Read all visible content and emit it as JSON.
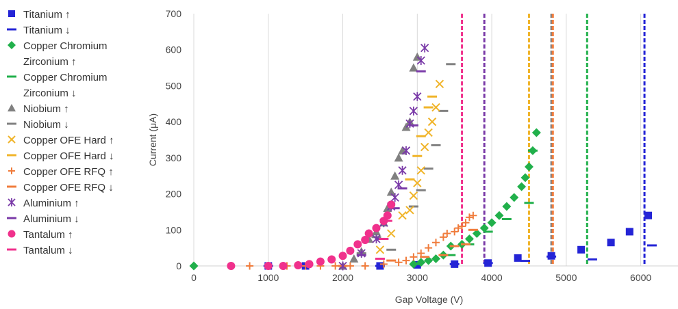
{
  "chart_data": {
    "type": "scatter",
    "title": "",
    "xlabel": "Gap Voltage (V)",
    "ylabel": "Current (μA)",
    "xlim": [
      0,
      6500
    ],
    "ylim": [
      0,
      700
    ],
    "xticks": [
      0,
      1000,
      2000,
      3000,
      4000,
      5000,
      6000
    ],
    "yticks": [
      0,
      100,
      200,
      300,
      400,
      500,
      600,
      700
    ],
    "grid": "vertical",
    "legend_position": "left",
    "series": [
      {
        "name": "Titanium ↑",
        "marker": "square",
        "color": "#2424d6",
        "x": [
          1000,
          1500,
          2500,
          3000,
          3500,
          3950,
          4350,
          4800,
          5200,
          5600,
          5850,
          6100
        ],
        "y": [
          0,
          0,
          0,
          3,
          5,
          8,
          22,
          28,
          45,
          65,
          95,
          140
        ]
      },
      {
        "name": "Titanium ↓",
        "marker": "dash",
        "color": "#2424d6",
        "x": [
          1000,
          1500,
          2500,
          3000,
          3500,
          3950,
          4450,
          4800,
          5350,
          6150
        ],
        "y": [
          0,
          0,
          0,
          3,
          5,
          8,
          14,
          26,
          18,
          57
        ]
      },
      {
        "name": "Copper Chromium Zirconium ↑",
        "marker": "diamond",
        "color": "#21b04b",
        "x": [
          0,
          2950,
          3050,
          3150,
          3250,
          3350,
          3450,
          3600,
          3700,
          3800,
          3900,
          4000,
          4100,
          4200,
          4300,
          4400,
          4450,
          4500,
          4550,
          4600
        ],
        "y": [
          0,
          5,
          10,
          15,
          20,
          30,
          55,
          60,
          75,
          90,
          105,
          120,
          140,
          165,
          190,
          220,
          245,
          275,
          320,
          370
        ]
      },
      {
        "name": "Copper Chromium Zirconium ↓",
        "marker": "dash",
        "color": "#21b04b",
        "x": [
          3000,
          3450,
          3700,
          3950,
          4200,
          4500,
          4550
        ],
        "y": [
          5,
          30,
          60,
          95,
          130,
          175,
          320
        ]
      },
      {
        "name": "Niobium ↑",
        "marker": "triangle",
        "color": "#808080",
        "x": [
          2000,
          2150,
          2250,
          2350,
          2450,
          2550,
          2600,
          2650,
          2700,
          2750,
          2800,
          2850,
          2900,
          2950,
          3000
        ],
        "y": [
          0,
          20,
          40,
          75,
          95,
          120,
          160,
          205,
          250,
          300,
          320,
          385,
          400,
          550,
          580
        ]
      },
      {
        "name": "Niobium ↓",
        "marker": "dash",
        "color": "#808080",
        "x": [
          2250,
          2450,
          2650,
          2950,
          3050,
          3150,
          3250,
          3350,
          3450
        ],
        "y": [
          35,
          80,
          45,
          165,
          210,
          270,
          335,
          430,
          560
        ]
      },
      {
        "name": "Copper OFE Hard ↑",
        "marker": "x",
        "color": "#f0b429",
        "x": [
          2500,
          2650,
          2800,
          2900,
          2950,
          3000,
          3050,
          3100,
          3150,
          3200,
          3250,
          3300
        ],
        "y": [
          45,
          90,
          140,
          155,
          195,
          230,
          265,
          330,
          370,
          400,
          440,
          505
        ]
      },
      {
        "name": "Copper OFE Hard ↓",
        "marker": "dash",
        "color": "#f0b429",
        "x": [
          2900,
          3000,
          3050,
          3150,
          3200
        ],
        "y": [
          240,
          305,
          360,
          440,
          470
        ]
      },
      {
        "name": "Copper OFE RFQ ↑",
        "marker": "plus",
        "color": "#f07c3c",
        "x": [
          750,
          1000,
          1250,
          1500,
          1700,
          1900,
          2100,
          2300,
          2550,
          2750,
          2850,
          2950,
          3050,
          3150,
          3250,
          3350,
          3400,
          3500,
          3550,
          3600,
          3650,
          3700,
          3750
        ],
        "y": [
          0,
          0,
          0,
          0,
          0,
          0,
          0,
          0,
          5,
          10,
          15,
          25,
          35,
          50,
          65,
          80,
          90,
          95,
          105,
          110,
          120,
          135,
          140
        ]
      },
      {
        "name": "Copper OFE RFQ ↓",
        "marker": "dash",
        "color": "#f07c3c",
        "x": [
          2000,
          2650,
          3100,
          3350,
          3500,
          3650,
          3750
        ],
        "y": [
          0,
          15,
          25,
          30,
          55,
          60,
          100
        ]
      },
      {
        "name": "Aluminium ↑",
        "marker": "asterisk",
        "color": "#7a3aa8",
        "x": [
          2000,
          2250,
          2450,
          2550,
          2650,
          2700,
          2750,
          2800,
          2850,
          2900,
          2950,
          3000,
          3050,
          3100
        ],
        "y": [
          0,
          35,
          75,
          120,
          165,
          190,
          225,
          265,
          320,
          395,
          430,
          470,
          570,
          605
        ]
      },
      {
        "name": "Aluminium ↓",
        "marker": "dash",
        "color": "#7a3aa8",
        "x": [
          2250,
          2500,
          2700,
          2800,
          2950,
          3050
        ],
        "y": [
          30,
          75,
          160,
          215,
          390,
          540
        ]
      },
      {
        "name": "Tantalum ↑",
        "marker": "circle",
        "color": "#f0318c",
        "x": [
          500,
          1000,
          1200,
          1400,
          1550,
          1700,
          1850,
          2000,
          2100,
          2200,
          2300,
          2350,
          2450,
          2550,
          2600,
          2650
        ],
        "y": [
          0,
          0,
          0,
          2,
          5,
          12,
          18,
          28,
          42,
          60,
          72,
          90,
          105,
          125,
          140,
          170
        ]
      },
      {
        "name": "Tantalum ↓",
        "marker": "dash",
        "color": "#f0318c",
        "x": [
          2500,
          2550,
          2600
        ],
        "y": [
          20,
          75,
          125
        ]
      }
    ],
    "vertical_lines": [
      {
        "x": 3600,
        "color": "#f0318c"
      },
      {
        "x": 3900,
        "color": "#7a3aa8"
      },
      {
        "x": 4500,
        "color": "#f0b429"
      },
      {
        "x": 4800,
        "color": "#808080"
      },
      {
        "x": 4820,
        "color": "#f07c3c"
      },
      {
        "x": 5280,
        "color": "#21b04b"
      },
      {
        "x": 6050,
        "color": "#2424d6"
      }
    ]
  },
  "legend": [
    {
      "label": "Titanium ↑",
      "marker": "square",
      "color": "#2424d6"
    },
    {
      "label": "Titanium ↓",
      "marker": "dash",
      "color": "#2424d6"
    },
    {
      "label": "Copper Chromium Zirconium ↑",
      "marker": "diamond",
      "color": "#21b04b",
      "wrap": true
    },
    {
      "label": "Copper Chromium Zirconium ↓",
      "marker": "dash",
      "color": "#21b04b",
      "wrap": true
    },
    {
      "label": "Niobium ↑",
      "marker": "triangle",
      "color": "#808080"
    },
    {
      "label": "Niobium ↓",
      "marker": "dash",
      "color": "#808080"
    },
    {
      "label": "Copper OFE Hard ↑",
      "marker": "x",
      "color": "#f0b429"
    },
    {
      "label": "Copper OFE Hard ↓",
      "marker": "dash",
      "color": "#f0b429"
    },
    {
      "label": "Copper OFE RFQ ↑",
      "marker": "plus",
      "color": "#f07c3c"
    },
    {
      "label": "Copper OFE RFQ ↓",
      "marker": "dash",
      "color": "#f07c3c"
    },
    {
      "label": "Aluminium ↑",
      "marker": "asterisk",
      "color": "#7a3aa8"
    },
    {
      "label": "Aluminium ↓",
      "marker": "dash",
      "color": "#7a3aa8"
    },
    {
      "label": "Tantalum ↑",
      "marker": "circle",
      "color": "#f0318c"
    },
    {
      "label": "Tantalum ↓",
      "marker": "dash",
      "color": "#f0318c"
    }
  ]
}
